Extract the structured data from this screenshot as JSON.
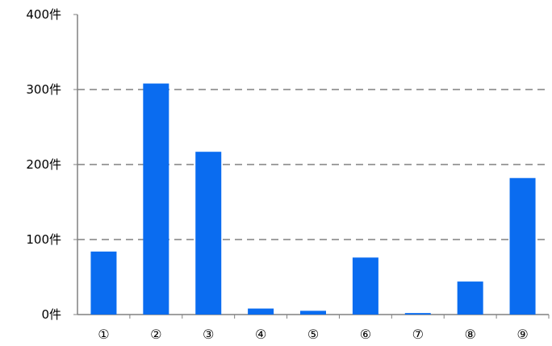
{
  "chart_data": {
    "type": "bar",
    "categories": [
      "①",
      "②",
      "③",
      "④",
      "⑤",
      "⑥",
      "⑦",
      "⑧",
      "⑨"
    ],
    "values": [
      84,
      308,
      217,
      8,
      5,
      76,
      2,
      44,
      182
    ],
    "y_ticks": [
      "0件",
      "100件",
      "200件",
      "300件",
      "400件"
    ],
    "ylim": [
      0,
      400
    ],
    "grid": true,
    "bar_color": "#0a6cf0",
    "grid_color": "#a0a0a0",
    "axis_color": "#808080"
  }
}
